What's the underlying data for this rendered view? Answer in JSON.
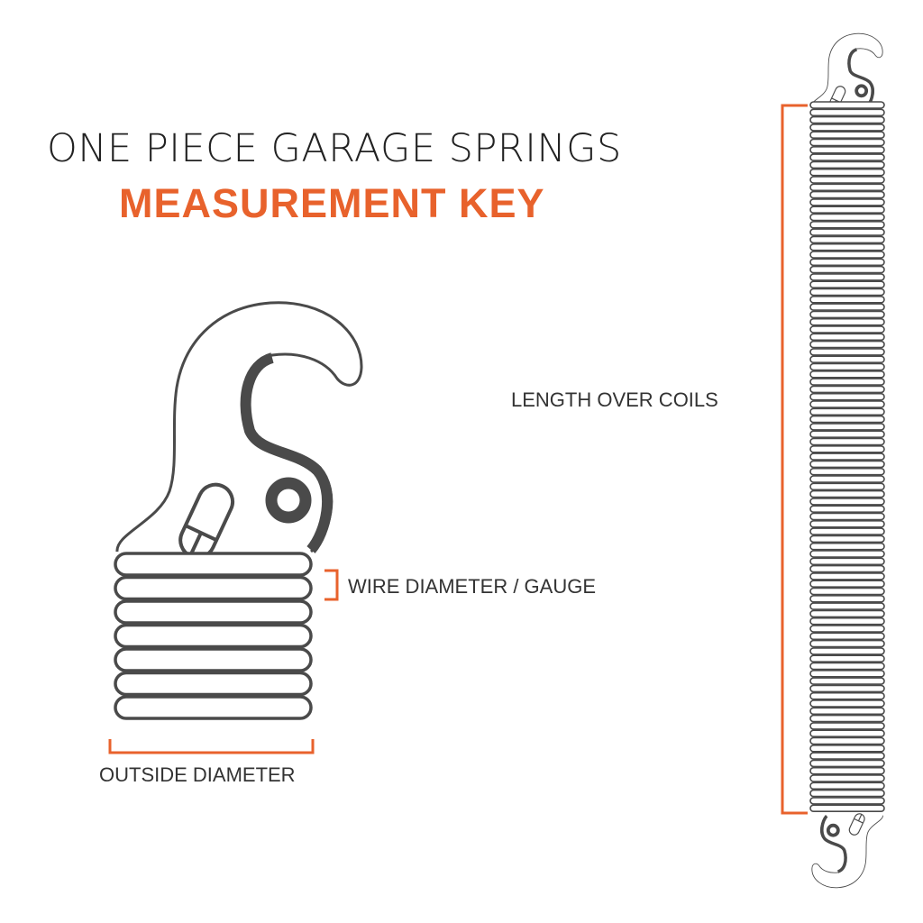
{
  "header": {
    "title": "ONE PIECE GARAGE SPRINGS",
    "subtitle": "MEASUREMENT KEY"
  },
  "labels": {
    "length": "LENGTH OVER COILS",
    "wire": "WIRE DIAMETER / GAUGE",
    "outside": "OUTSIDE DIAMETER"
  },
  "colors": {
    "accent": "#e8622c",
    "line": "#4a4a4a"
  }
}
